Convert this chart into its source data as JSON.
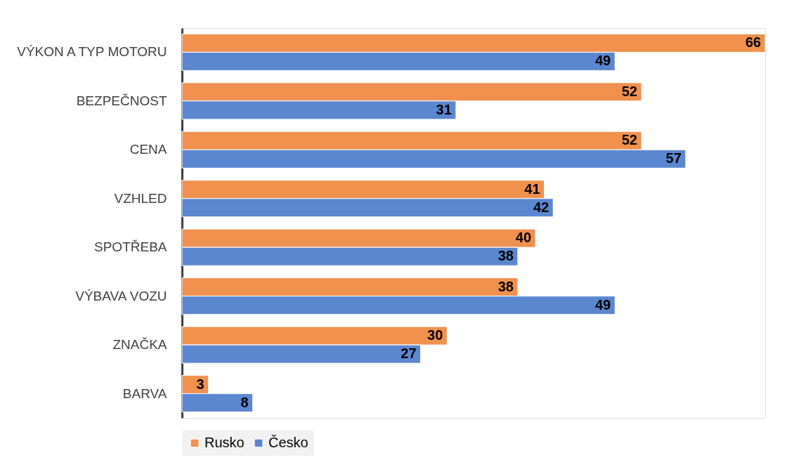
{
  "chart_data": {
    "type": "bar",
    "orientation": "horizontal",
    "categories": [
      "VÝKON A TYP MOTORU",
      "BEZPEČNOST",
      "CENA",
      "VZHLED",
      "SPOTŘEBA",
      "VÝBAVA VOZU",
      "ZNAČKA",
      "BARVA"
    ],
    "series": [
      {
        "name": "Rusko",
        "color": "#f0914f",
        "values": [
          66,
          52,
          52,
          41,
          40,
          38,
          30,
          3
        ]
      },
      {
        "name": "Česko",
        "color": "#5b87d0",
        "values": [
          49,
          31,
          57,
          42,
          38,
          49,
          27,
          8
        ]
      }
    ],
    "data_labels": true,
    "legend": "bottom",
    "grid": false,
    "tick_labels": "y"
  }
}
